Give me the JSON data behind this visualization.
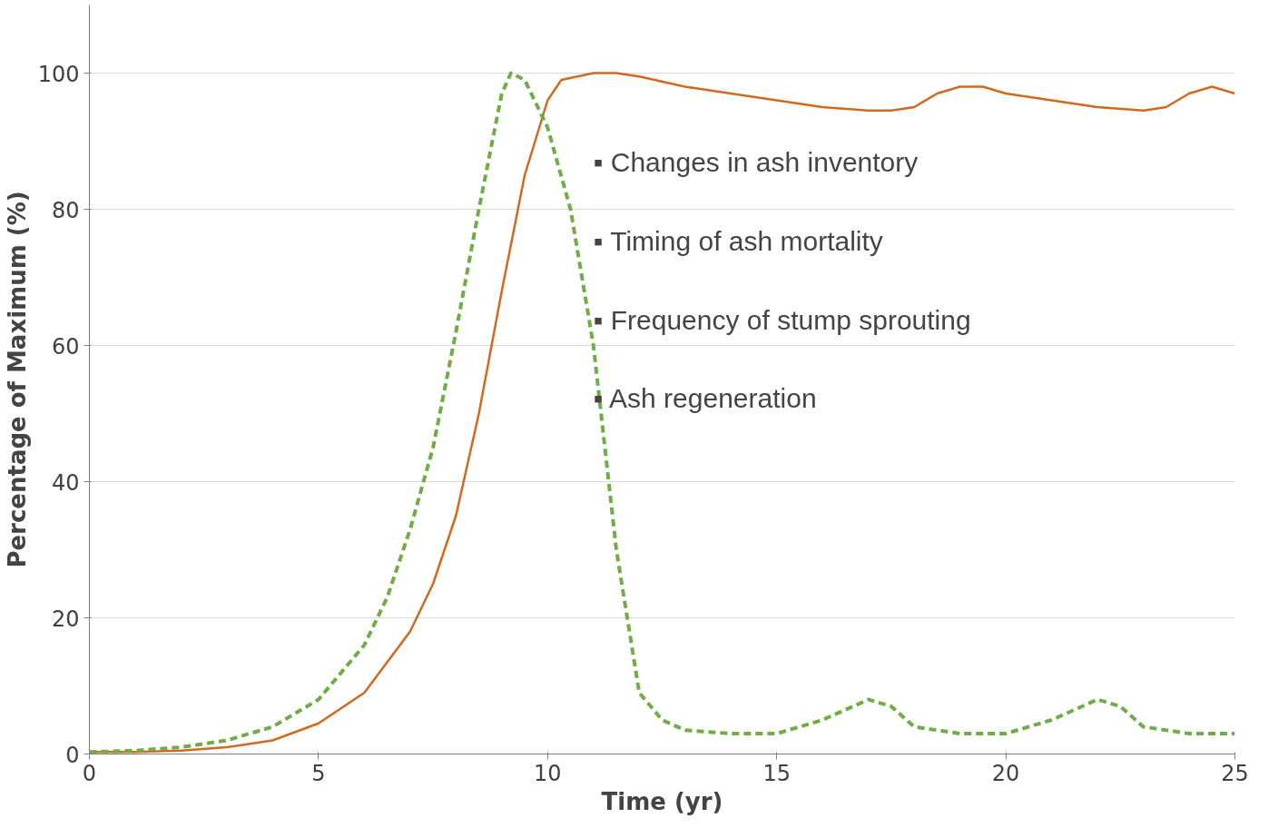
{
  "chart_data": {
    "type": "line",
    "xlabel": "Time (yr)",
    "ylabel": "Percentage of Maximum (%)",
    "xlim": [
      0,
      25
    ],
    "ylim": [
      0,
      110
    ],
    "xticks": [
      0,
      5,
      10,
      15,
      20,
      25
    ],
    "yticks": [
      0,
      20,
      40,
      60,
      80,
      100
    ],
    "grid": "y",
    "annotations": [
      "▪   Changes in ash inventory",
      "▪   Timing of ash mortality",
      "▪   Frequency of stump sprouting",
      "▪   Ash regeneration"
    ],
    "series": [
      {
        "color": "#d2691e",
        "line_style": "solid",
        "x": [
          0,
          1,
          2,
          3,
          4,
          5,
          6,
          7,
          7.5,
          8,
          8.5,
          9,
          9.5,
          10,
          10.3,
          11,
          11.5,
          12,
          13,
          14,
          15,
          16,
          17,
          17.5,
          18,
          18.5,
          19,
          19.5,
          20,
          21,
          22,
          23,
          23.5,
          24,
          24.5,
          25
        ],
        "values": [
          0.3,
          0.3,
          0.5,
          1,
          2,
          4.5,
          9,
          18,
          25,
          35,
          50,
          68,
          85,
          96,
          99,
          100,
          100,
          99.5,
          98,
          97,
          96,
          95,
          94.5,
          94.5,
          95,
          97,
          98,
          98,
          97,
          96,
          95,
          94.5,
          95,
          97,
          98,
          97
        ]
      },
      {
        "color": "#70ad47",
        "line_style": "dashed",
        "x": [
          0,
          1,
          2,
          3,
          4,
          5,
          6,
          6.5,
          7,
          7.5,
          8,
          8.5,
          9,
          9.2,
          9.5,
          10,
          10.5,
          11,
          11.5,
          12,
          12.5,
          13,
          14,
          15,
          16,
          17,
          17.5,
          18,
          19,
          20,
          21,
          22,
          22.5,
          23,
          24,
          25
        ],
        "values": [
          0.3,
          0.5,
          1,
          2,
          4,
          8,
          16,
          23,
          33,
          45,
          62,
          80,
          97,
          100,
          99,
          92,
          80,
          60,
          30,
          9,
          5,
          3.5,
          3,
          3,
          5,
          8,
          7,
          4,
          3,
          3,
          5,
          8,
          7,
          4,
          3,
          3
        ]
      }
    ]
  }
}
